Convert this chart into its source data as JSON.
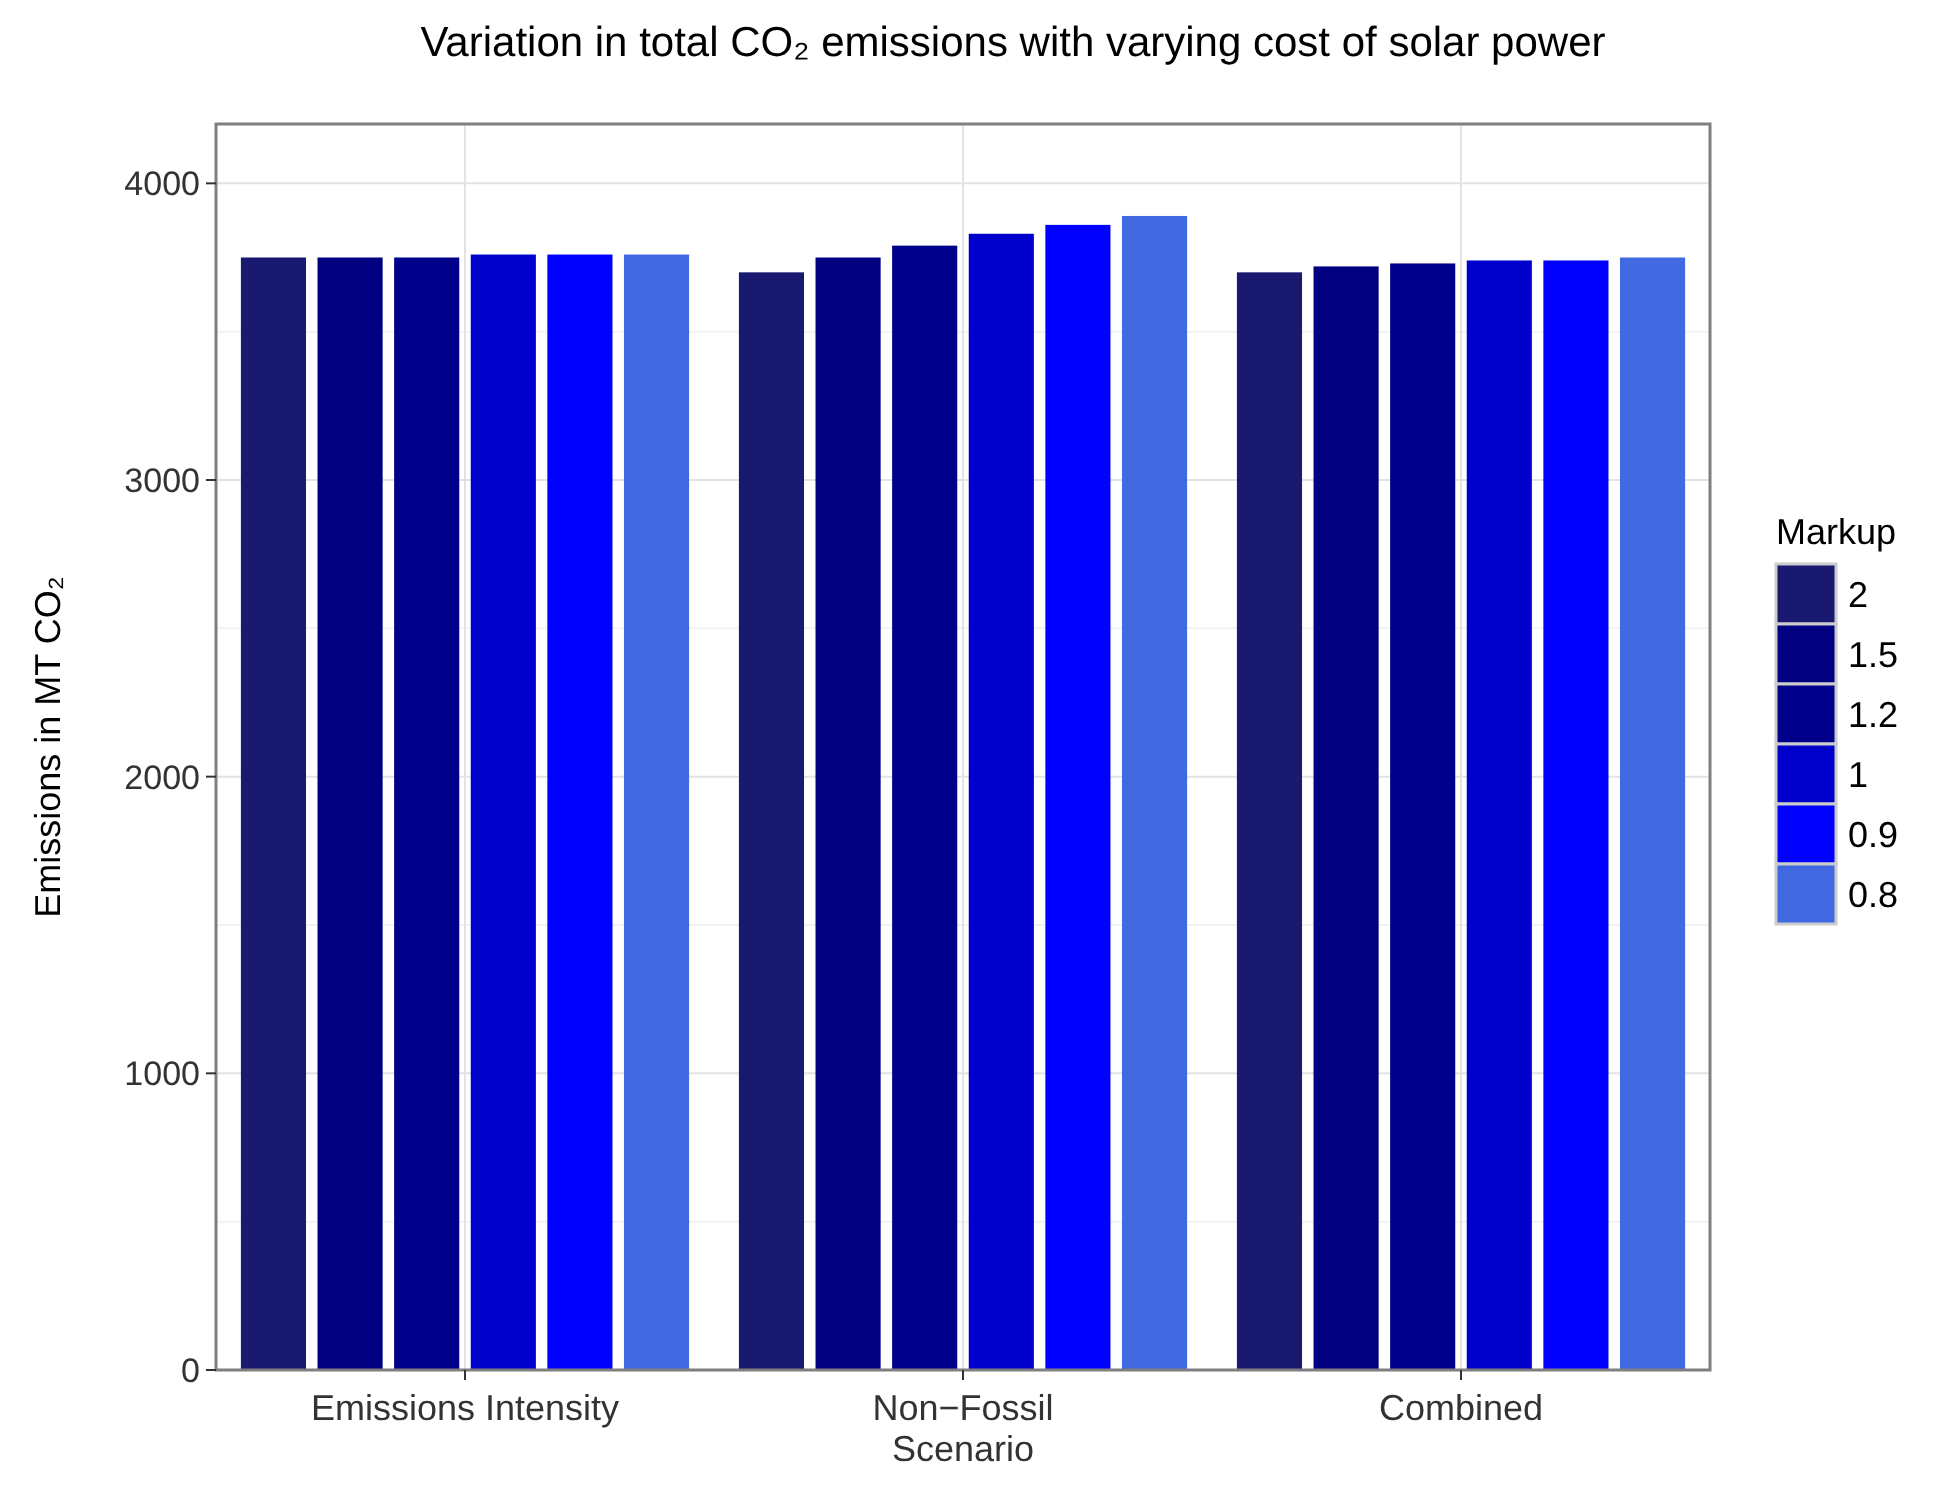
{
  "chart_data": {
    "type": "bar",
    "title": "Variation in total CO₂ emissions with varying cost of solar power",
    "ylabel": "Emissions in MT CO₂",
    "legend_title": "Markup",
    "categories": [
      "Emissions Intensity",
      "Non−Fossil\nScenario",
      "Combined"
    ],
    "series": [
      {
        "name": "2",
        "color": "#191970",
        "values": [
          3750,
          3700,
          3700
        ]
      },
      {
        "name": "1.5",
        "color": "#000080",
        "values": [
          3750,
          3750,
          3720
        ]
      },
      {
        "name": "1.2",
        "color": "#00008b",
        "values": [
          3750,
          3790,
          3730
        ]
      },
      {
        "name": "1",
        "color": "#0000cd",
        "values": [
          3760,
          3830,
          3740
        ]
      },
      {
        "name": "0.9",
        "color": "#0000ff",
        "values": [
          3760,
          3860,
          3740
        ]
      },
      {
        "name": "0.8",
        "color": "#4169e1",
        "values": [
          3760,
          3890,
          3750
        ]
      }
    ],
    "ylim": [
      0,
      4200
    ],
    "yticks": [
      0,
      1000,
      2000,
      3000,
      4000
    ],
    "grid": true,
    "legend": "right"
  }
}
